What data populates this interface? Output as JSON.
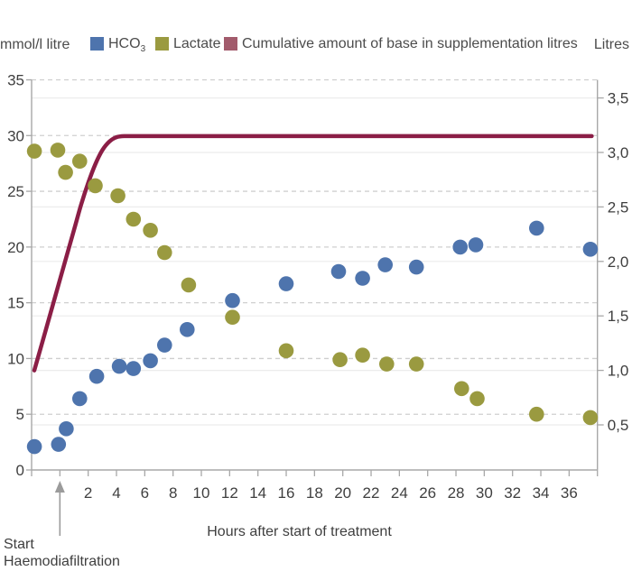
{
  "colors": {
    "hco3": "#4e74ad",
    "lactate": "#9a9a40",
    "cumulative_line": "#8b1e46",
    "cumulative_swatch": "#a25b6c",
    "axis": "#a8a8a8",
    "grid_dashed": "#cfcfcf",
    "grid_faint": "#ececec",
    "tick_text": "#3f3f3f",
    "arrow": "#9b9b9b"
  },
  "legend": {
    "left_unit": "mmol/l litre",
    "right_unit": "Litres",
    "items": [
      {
        "label": "HCO",
        "sub": "3",
        "color_key": "hco3"
      },
      {
        "label": "Lactate",
        "sub": "",
        "color_key": "lactate"
      },
      {
        "label": "Cumulative amount of base in supplementation litres",
        "sub": "",
        "color_key": "cumulative_swatch"
      }
    ]
  },
  "footer": {
    "xlabel": "Hours after start of treatment",
    "annotation_line1": "Start",
    "annotation_line2": "Haemodiafiltration"
  },
  "chart_data": {
    "type": "scatter",
    "title": "",
    "xlabel": "Hours after start of treatment",
    "x_axis": {
      "min": -2,
      "max": 38,
      "tick_step": 2,
      "labeled_ticks": [
        2,
        4,
        6,
        8,
        10,
        12,
        14,
        16,
        18,
        20,
        22,
        24,
        26,
        28,
        30,
        32,
        34,
        36
      ]
    },
    "left_axis": {
      "unit": "mmol/l litre",
      "min": 0,
      "max": 35,
      "ticks": [
        35,
        30,
        25,
        20,
        15,
        10,
        5,
        0
      ],
      "grid": "dashed"
    },
    "right_axis": {
      "unit": "Litres",
      "ticks": [
        {
          "v": 3.5,
          "label": "3,5"
        },
        {
          "v": 3.0,
          "label": "3,0"
        },
        {
          "v": 2.5,
          "label": "2,5"
        },
        {
          "v": 2.0,
          "label": "2,0"
        },
        {
          "v": 1.5,
          "label": "1,5"
        },
        {
          "v": 1.0,
          "label": "1,0"
        },
        {
          "v": 0.5,
          "label": "0,5"
        }
      ],
      "grid": "faint"
    },
    "series": [
      {
        "name": "HCO3",
        "type": "scatter",
        "axis": "left",
        "color_key": "hco3",
        "points": [
          [
            -1.8,
            2.1
          ],
          [
            -0.1,
            2.3
          ],
          [
            0.45,
            3.7
          ],
          [
            1.4,
            6.4
          ],
          [
            2.6,
            8.4
          ],
          [
            4.2,
            9.3
          ],
          [
            5.2,
            9.1
          ],
          [
            6.4,
            9.8
          ],
          [
            7.4,
            11.2
          ],
          [
            9.0,
            12.6
          ],
          [
            12.2,
            15.2
          ],
          [
            16.0,
            16.7
          ],
          [
            19.7,
            17.8
          ],
          [
            21.4,
            17.2
          ],
          [
            23.0,
            18.4
          ],
          [
            25.2,
            18.2
          ],
          [
            28.3,
            20.0
          ],
          [
            29.4,
            20.2
          ],
          [
            33.7,
            21.7
          ],
          [
            37.5,
            19.8
          ]
        ]
      },
      {
        "name": "Lactate",
        "type": "scatter",
        "axis": "left",
        "color_key": "lactate",
        "points": [
          [
            -1.8,
            28.6
          ],
          [
            -0.15,
            28.7
          ],
          [
            0.4,
            26.7
          ],
          [
            1.4,
            27.7
          ],
          [
            2.5,
            25.5
          ],
          [
            4.1,
            24.6
          ],
          [
            5.2,
            22.5
          ],
          [
            6.4,
            21.5
          ],
          [
            7.4,
            19.5
          ],
          [
            9.1,
            16.6
          ],
          [
            12.2,
            13.7
          ],
          [
            16.0,
            10.7
          ],
          [
            19.8,
            9.9
          ],
          [
            21.4,
            10.3
          ],
          [
            23.1,
            9.5
          ],
          [
            25.2,
            9.5
          ],
          [
            28.4,
            7.3
          ],
          [
            29.5,
            6.4
          ],
          [
            33.7,
            5.0
          ],
          [
            37.5,
            4.7
          ]
        ]
      },
      {
        "name": "Cumulative amount of base in supplementation litres",
        "type": "line",
        "axis": "right",
        "color_key": "cumulative_line",
        "points": [
          [
            -1.81,
            1.0
          ],
          [
            -1.0,
            1.37
          ],
          [
            0,
            1.83
          ],
          [
            1.0,
            2.29
          ],
          [
            1.5,
            2.52
          ],
          [
            2.0,
            2.72
          ],
          [
            2.5,
            2.89
          ],
          [
            3.0,
            3.02
          ],
          [
            3.5,
            3.1
          ],
          [
            4.0,
            3.14
          ],
          [
            4.6,
            3.15
          ],
          [
            6,
            3.15
          ],
          [
            10,
            3.15
          ],
          [
            20,
            3.15
          ],
          [
            30,
            3.15
          ],
          [
            37.6,
            3.15
          ]
        ]
      }
    ],
    "annotations": {
      "start_arrow_hour": 0,
      "start_label": "Start Haemodiafiltration"
    }
  }
}
